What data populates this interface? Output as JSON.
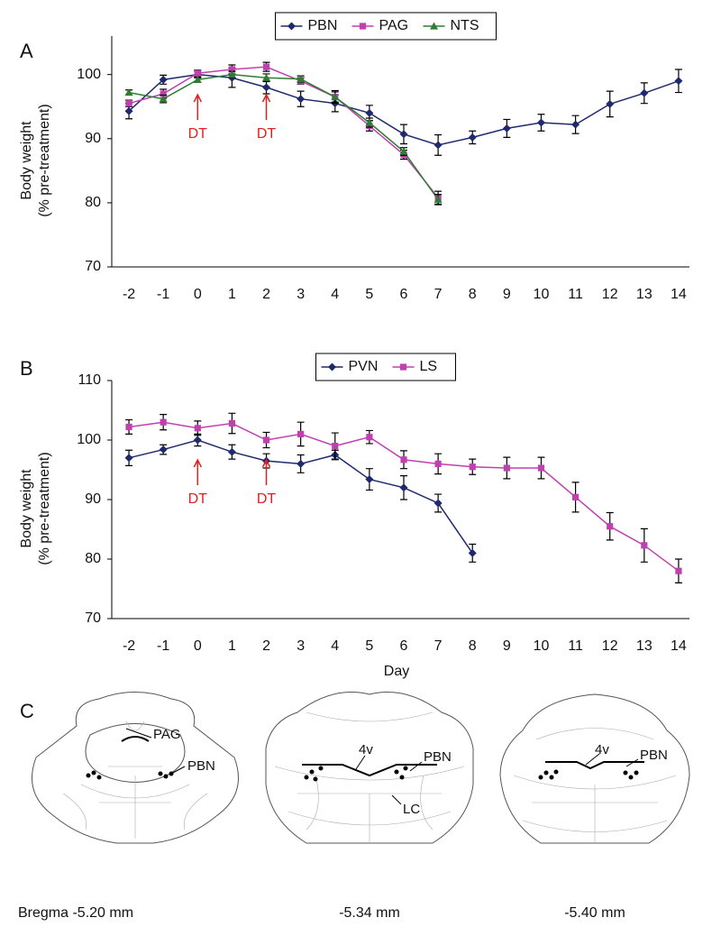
{
  "chart_data": [
    {
      "type": "line",
      "panel": "A",
      "y_label": [
        "Body weight",
        "(% pre-treatment)"
      ],
      "x": [
        -2,
        -1,
        0,
        1,
        2,
        3,
        4,
        5,
        6,
        7,
        8,
        9,
        10,
        11,
        12,
        13,
        14
      ],
      "xlim": [
        -2.5,
        14.5
      ],
      "xticks": [
        -2,
        -1,
        0,
        1,
        2,
        3,
        4,
        5,
        6,
        7,
        8,
        9,
        10,
        11,
        12,
        13,
        14
      ],
      "ylim": [
        70,
        106
      ],
      "yticks": [
        70,
        80,
        90,
        100
      ],
      "series": [
        {
          "name": "PBN",
          "color": "#1f2a6e",
          "marker": "diamond",
          "values": [
            94.3,
            99.2,
            100,
            99.5,
            98,
            96.2,
            95.5,
            94,
            90.7,
            89,
            90.2,
            91.6,
            92.5,
            92.2,
            95.4,
            97.1,
            99
          ],
          "errors": [
            1.2,
            0.7,
            0.5,
            1.5,
            1,
            1.2,
            1.3,
            1.2,
            1.5,
            1.6,
            1,
            1.4,
            1.3,
            1.4,
            2,
            1.6,
            1.8
          ]
        },
        {
          "name": "PAG",
          "color": "#c040b0",
          "marker": "square",
          "values": [
            95.5,
            97,
            100.2,
            100.8,
            101.2,
            99,
            96.5,
            92,
            87.5,
            80.8,
            null,
            null,
            null,
            null,
            null,
            null,
            null
          ],
          "errors": [
            0.5,
            0.7,
            0.5,
            0.7,
            0.7,
            0.5,
            1,
            0.8,
            0.7,
            1,
            null,
            null,
            null,
            null,
            null,
            null,
            null
          ]
        },
        {
          "name": "NTS",
          "color": "#2e7d32",
          "marker": "triangle",
          "values": [
            97.2,
            96.2,
            99.2,
            100,
            99.5,
            99.3,
            96.5,
            92.5,
            88,
            80.5,
            null,
            null,
            null,
            null,
            null,
            null,
            null
          ],
          "errors": [
            0.4,
            0.6,
            0.4,
            0.5,
            0.6,
            0.5,
            0.8,
            0.7,
            0.6,
            0.8,
            null,
            null,
            null,
            null,
            null,
            null,
            null
          ]
        }
      ],
      "annotations": [
        {
          "text": "DT",
          "x": 0
        },
        {
          "text": "DT",
          "x": 2
        }
      ]
    },
    {
      "type": "line",
      "panel": "B",
      "y_label": [
        "Body weight",
        "(% pre-treatment)"
      ],
      "x_label": "Day",
      "x": [
        -2,
        -1,
        0,
        1,
        2,
        3,
        4,
        5,
        6,
        7,
        8,
        9,
        10,
        11,
        12,
        13,
        14
      ],
      "xlim": [
        -2.5,
        14.5
      ],
      "xticks": [
        -2,
        -1,
        0,
        1,
        2,
        3,
        4,
        5,
        6,
        7,
        8,
        9,
        10,
        11,
        12,
        13,
        14
      ],
      "ylim": [
        70,
        110
      ],
      "yticks": [
        70,
        80,
        90,
        100,
        110
      ],
      "series": [
        {
          "name": "PVN",
          "color": "#1f2a6e",
          "marker": "diamond",
          "values": [
            97,
            98.4,
            100,
            98,
            96.5,
            96,
            97.5,
            93.4,
            92,
            89.4,
            81,
            null,
            null,
            null,
            null,
            null,
            null
          ],
          "errors": [
            1.3,
            0.8,
            1,
            1.2,
            1.2,
            1.5,
            0.8,
            1.8,
            2,
            1.5,
            1.5,
            null,
            null,
            null,
            null,
            null,
            null
          ]
        },
        {
          "name": "LS",
          "color": "#c040b0",
          "marker": "square",
          "values": [
            102.2,
            103,
            102,
            102.8,
            100,
            101,
            99,
            100.5,
            96.7,
            96,
            95.5,
            95.3,
            95.3,
            90.4,
            85.5,
            82.3,
            78
          ],
          "errors": [
            1.2,
            1.3,
            1.2,
            1.7,
            1.3,
            2,
            2.2,
            1.1,
            1.5,
            1.7,
            1.3,
            1.8,
            1.8,
            2.5,
            2.3,
            2.8,
            2
          ]
        }
      ],
      "annotations": [
        {
          "text": "DT",
          "x": 0
        },
        {
          "text": "DT",
          "x": 2
        }
      ]
    }
  ],
  "panel_c": {
    "panel": "C",
    "sections": [
      {
        "labels": [
          "PAG",
          "PBN"
        ],
        "caption": "Bregma  -5.20 mm"
      },
      {
        "labels": [
          "4v",
          "PBN",
          "LC"
        ],
        "caption": "-5.34 mm"
      },
      {
        "labels": [
          "4v",
          "PBN"
        ],
        "caption": "-5.40 mm"
      }
    ]
  }
}
